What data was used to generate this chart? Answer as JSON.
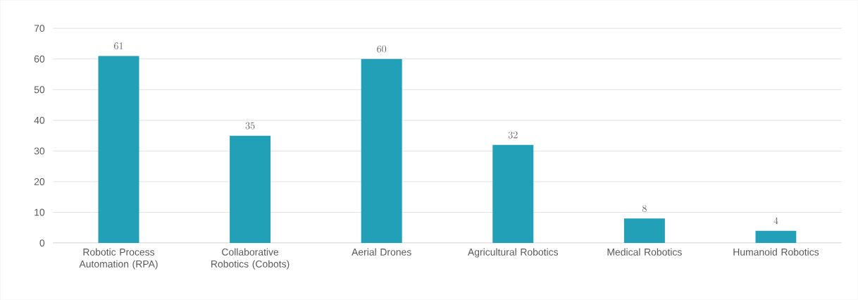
{
  "chart_data": {
    "type": "bar",
    "categories": [
      "Robotic Process Automation (RPA)",
      "Collaborative Robotics (Cobots)",
      "Aerial Drones",
      "Agricultural Robotics",
      "Medical Robotics",
      "Humanoid Robotics"
    ],
    "values": [
      61,
      35,
      60,
      32,
      8,
      4
    ],
    "color": "#21a0b8",
    "ylim": [
      0,
      70
    ],
    "yticks": [
      0,
      10,
      20,
      30,
      40,
      50,
      60,
      70
    ],
    "grid": "y",
    "data_labels": true
  }
}
